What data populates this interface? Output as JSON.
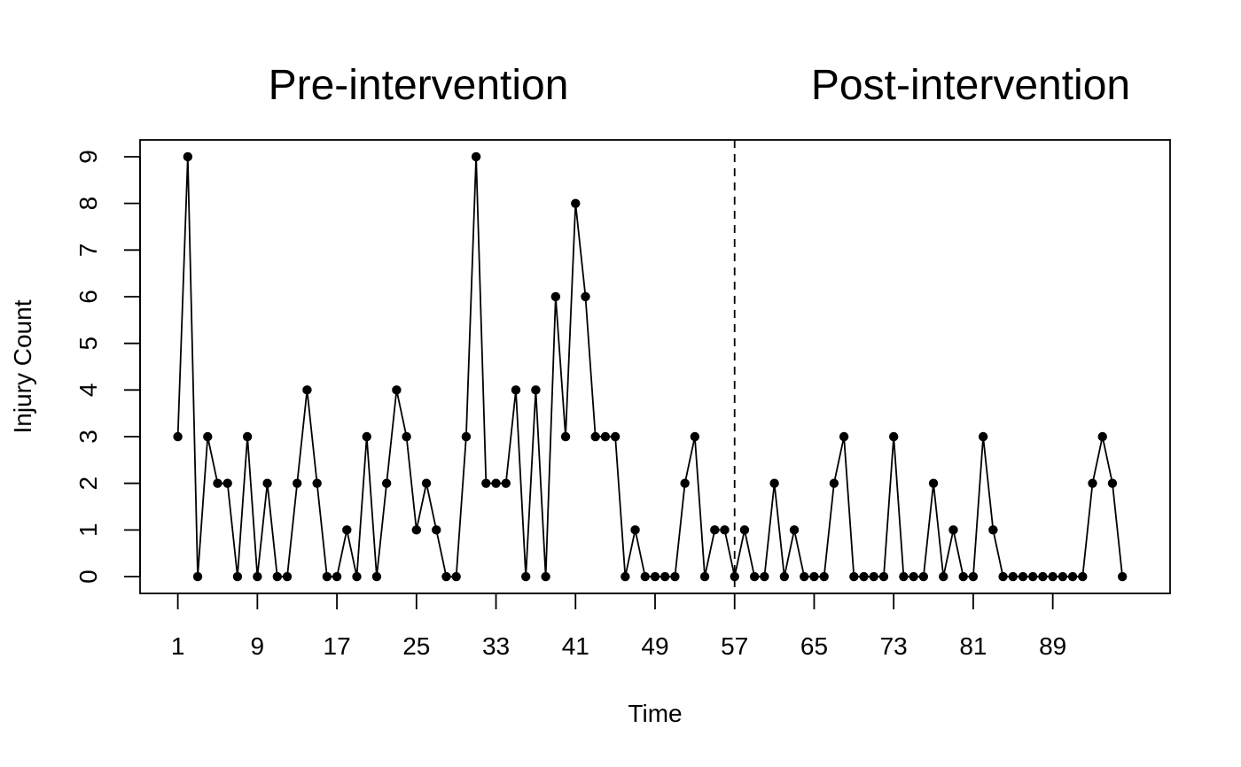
{
  "chart_data": {
    "type": "line",
    "xlabel": "Time",
    "ylabel": "Injury Count",
    "xlim": [
      -2.8,
      100.8
    ],
    "ylim": [
      -0.36,
      9.36
    ],
    "x_ticks": [
      1,
      9,
      17,
      25,
      33,
      41,
      49,
      57,
      65,
      73,
      81,
      89
    ],
    "y_ticks": [
      0,
      1,
      2,
      3,
      4,
      5,
      6,
      7,
      8,
      9
    ],
    "intervention_x": 57,
    "period_labels": {
      "pre": "Pre-intervention",
      "post": "Post-intervention"
    },
    "markers": true,
    "grid": false,
    "legend": "none",
    "line_color": "#000000",
    "series": [
      {
        "x": [
          1,
          2,
          3,
          4,
          5,
          6,
          7,
          8,
          9,
          10,
          11,
          12,
          13,
          14,
          15,
          16,
          17,
          18,
          19,
          20,
          21,
          22,
          23,
          24,
          25,
          26,
          27,
          28,
          29,
          30,
          31,
          32,
          33,
          34,
          35,
          36,
          37,
          38,
          39,
          40,
          41,
          42,
          43,
          44,
          45,
          46,
          47,
          48,
          49,
          50,
          51,
          52,
          53,
          54,
          55,
          56,
          57,
          58,
          59,
          60,
          61,
          62,
          63,
          64,
          65,
          66,
          67,
          68,
          69,
          70,
          71,
          72,
          73,
          74,
          75,
          76,
          77,
          78,
          79,
          80,
          81,
          82,
          83,
          84,
          85,
          86,
          87,
          88,
          89,
          90,
          91,
          92,
          93,
          94,
          95,
          96
        ],
        "values": [
          3,
          9,
          0,
          3,
          2,
          2,
          0,
          3,
          0,
          2,
          0,
          0,
          2,
          4,
          2,
          0,
          0,
          1,
          0,
          3,
          0,
          2,
          4,
          3,
          1,
          2,
          1,
          0,
          0,
          3,
          9,
          2,
          2,
          2,
          4,
          0,
          4,
          0,
          6,
          3,
          8,
          6,
          3,
          3,
          3,
          0,
          1,
          0,
          0,
          0,
          0,
          2,
          3,
          0,
          1,
          1,
          0,
          1,
          0,
          0,
          2,
          0,
          1,
          0,
          0,
          0,
          2,
          3,
          0,
          0,
          0,
          0,
          3,
          0,
          0,
          0,
          2,
          0,
          1,
          0,
          0,
          3,
          1,
          0,
          0,
          0,
          0,
          0,
          0,
          0,
          0,
          0,
          2,
          3,
          2,
          0
        ]
      }
    ]
  }
}
